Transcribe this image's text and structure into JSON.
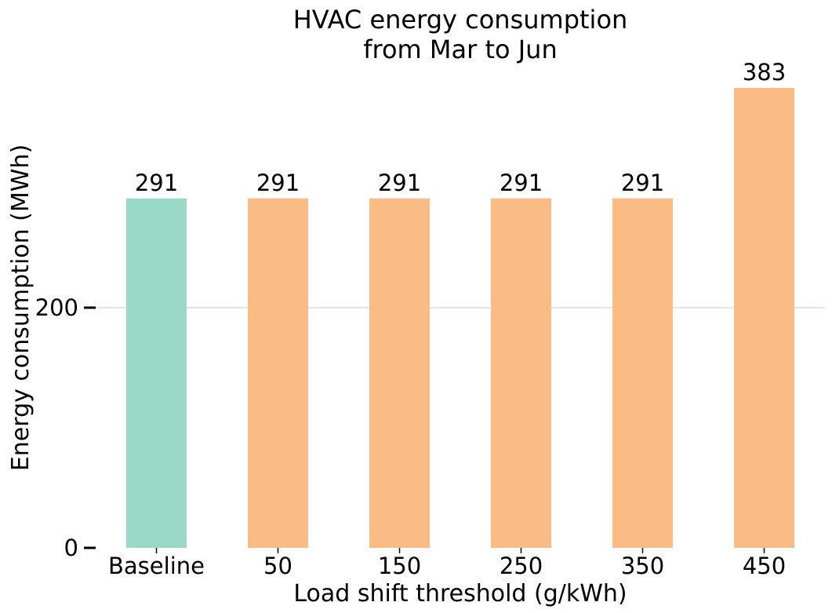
{
  "chart_data": {
    "type": "bar",
    "title_lines": [
      "HVAC energy consumption",
      "from Mar to Jun"
    ],
    "xlabel": "Load shift threshold (g/kWh)",
    "ylabel": "Energy consumption (MWh)",
    "categories": [
      "Baseline",
      "50",
      "150",
      "250",
      "350",
      "450"
    ],
    "values": [
      291,
      291,
      291,
      291,
      291,
      383
    ],
    "data_labels": [
      "291",
      "291",
      "291",
      "291",
      "291",
      "383"
    ],
    "bar_colors": [
      "#9ad8c7",
      "#fbbb84",
      "#fbbb84",
      "#fbbb84",
      "#fbbb84",
      "#fbbb84"
    ],
    "y_ticks": [
      0,
      200
    ],
    "y_tick_labels": [
      "0",
      "200"
    ],
    "ylim": [
      0,
      400
    ],
    "grid": "horizontal at 200",
    "grid_color": "#cccccc",
    "legend": "none"
  }
}
